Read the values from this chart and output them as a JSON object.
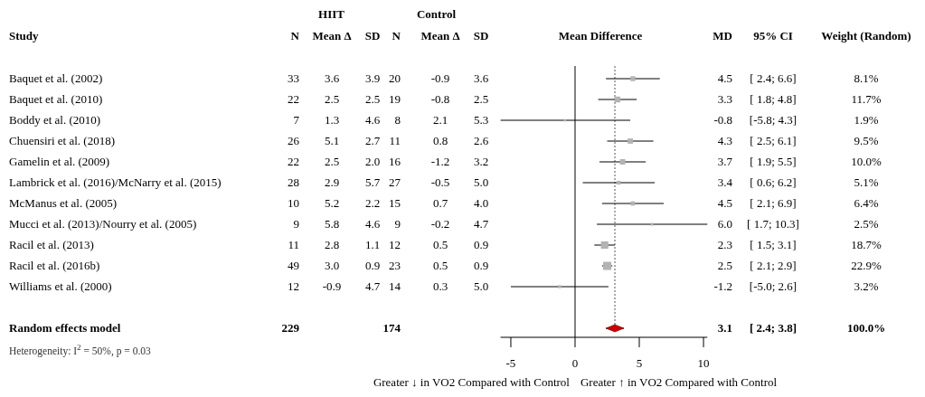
{
  "chart_data": [
    {
      "type": "other",
      "ylabel": "Study",
      "categories": [
        "N",
        "Mean Δ",
        "SD",
        "N",
        "Mean Δ",
        "SD"
      ],
      "y_categories": [
        "Baquet et al. (2002)",
        "Baquet et al. (2010)",
        "Boddy et al. (2010)",
        "Chuensiri et al. (2018)",
        "Gamelin et al. (2009)",
        "Lambrick et al. (2016)/McNarry et al. (2015)",
        "McManus et al. (2005)",
        "Mucci et al. (2013)/Nourry et al. (2005)",
        "Racil et al. (2013)",
        "Racil et al. (2016b)",
        "Williams et al. (2000)",
        null,
        "Random effects model"
      ],
      "cell_labels": [
        [
          "33",
          "3.6",
          "3.9",
          "20",
          "-0.9",
          "3.6"
        ],
        [
          "22",
          "2.5",
          "2.5",
          "19",
          "-0.8",
          "2.5"
        ],
        [
          "7",
          "1.3",
          "4.6",
          "8",
          "2.1",
          "5.3"
        ],
        [
          "26",
          "5.1",
          "2.7",
          "11",
          "0.8",
          "2.6"
        ],
        [
          "22",
          "2.5",
          "2.0",
          "16",
          "-1.2",
          "3.2"
        ],
        [
          "28",
          "2.9",
          "5.7",
          "27",
          "-0.5",
          "5.0"
        ],
        [
          "10",
          "5.2",
          "2.2",
          "15",
          "0.7",
          "4.0"
        ],
        [
          "9",
          "5.8",
          "4.6",
          "9",
          "-0.2",
          "4.7"
        ],
        [
          "11",
          "2.8",
          "1.1",
          "12",
          "0.5",
          "0.9"
        ],
        [
          "49",
          "3.0",
          "0.9",
          "23",
          "0.5",
          "0.9"
        ],
        [
          "12",
          "-0.9",
          "4.7",
          "14",
          "0.3",
          "5.0"
        ],
        [
          null,
          null,
          null,
          null,
          null,
          null
        ],
        [
          "229",
          null,
          null,
          "174",
          null,
          null
        ]
      ],
      "annotations": [
        "HIIT",
        "Control",
        "Heterogeneity: I$^{2}$ = 50%, p = 0.03"
      ]
    },
    {
      "type": "scatter",
      "orientation": "horizontal",
      "title": "Mean Difference",
      "categories": [
        null,
        null,
        null,
        null,
        null,
        null,
        null,
        null,
        null,
        null,
        null,
        null,
        null
      ],
      "series": [
        {
          "type": "scatter",
          "marker": "square",
          "color": "#b3b3b3",
          "values": [
            4.5,
            3.3,
            -0.8,
            4.3,
            3.7,
            3.4,
            4.5,
            6.0,
            2.3,
            2.5,
            -1.2,
            null,
            null
          ],
          "errors": [
            [
              2.4,
              6.6
            ],
            [
              1.8,
              4.8
            ],
            [
              -5.8,
              4.3
            ],
            [
              2.5,
              6.1
            ],
            [
              1.9,
              5.5
            ],
            [
              0.6,
              6.2
            ],
            [
              2.1,
              6.9
            ],
            [
              1.7,
              10.3
            ],
            [
              1.5,
              3.1
            ],
            [
              2.1,
              2.9
            ],
            [
              -5.0,
              2.6
            ],
            null,
            null
          ],
          "sizes": [
            0.354,
            0.511,
            0.083,
            0.415,
            0.437,
            0.223,
            0.279,
            0.109,
            0.817,
            1,
            0.14,
            null,
            null
          ]
        },
        {
          "type": "scatter",
          "marker": "diamond",
          "color": "#cc0000",
          "values": [
            null,
            null,
            null,
            null,
            null,
            null,
            null,
            null,
            null,
            null,
            null,
            null,
            3.1
          ],
          "errors": [
            null,
            null,
            null,
            null,
            null,
            null,
            null,
            null,
            null,
            null,
            null,
            null,
            [
              2.4,
              3.8
            ]
          ]
        }
      ],
      "xlim": [
        -5.8,
        10.3
      ],
      "xticks": [
        -5,
        0,
        5,
        10
      ],
      "ref_lines": [
        {
          "axis": "x",
          "value": 0,
          "color": "#000000",
          "line_style": "solid"
        },
        {
          "axis": "x",
          "value": 3.1,
          "color": "#555555",
          "line_style": "dotted"
        }
      ],
      "annotations": [
        "Greater ↓ in VO2 Compared with Control",
        "Greater ↑ in VO2 Compared with Control"
      ]
    },
    {
      "type": "other",
      "categories": [
        "MD",
        "95% CI",
        "Weight (Random)"
      ],
      "cell_labels": [
        [
          "4.5",
          "[ 2.4; 6.6]",
          "8.1%"
        ],
        [
          "3.3",
          "[ 1.8; 4.8]",
          "11.7%"
        ],
        [
          "-0.8",
          "[-5.8; 4.3]",
          "1.9%"
        ],
        [
          "4.3",
          "[ 2.5; 6.1]",
          "9.5%"
        ],
        [
          "3.7",
          "[ 1.9; 5.5]",
          "10.0%"
        ],
        [
          "3.4",
          "[ 0.6; 6.2]",
          "5.1%"
        ],
        [
          "4.5",
          "[ 2.1; 6.9]",
          "6.4%"
        ],
        [
          "6.0",
          "[ 1.7; 10.3]",
          "2.5%"
        ],
        [
          "2.3",
          "[ 1.5; 3.1]",
          "18.7%"
        ],
        [
          "2.5",
          "[ 2.1; 2.9]",
          "22.9%"
        ],
        [
          "-1.2",
          "[-5.0; 2.6]",
          "3.2%"
        ],
        [
          null,
          null,
          null
        ],
        [
          "3.1",
          "[ 2.4; 3.8]",
          "100.0%"
        ]
      ]
    }
  ]
}
